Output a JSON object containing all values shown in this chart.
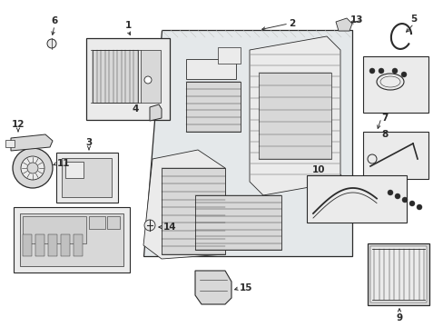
{
  "bg_color": "#ffffff",
  "line_color": "#2a2a2a",
  "fill_light": "#d8d8d8",
  "fill_lighter": "#ebebeb",
  "fill_mid": "#c8c8c8",
  "label_color": "#000000",
  "figsize": [
    4.89,
    3.6
  ],
  "dpi": 100
}
